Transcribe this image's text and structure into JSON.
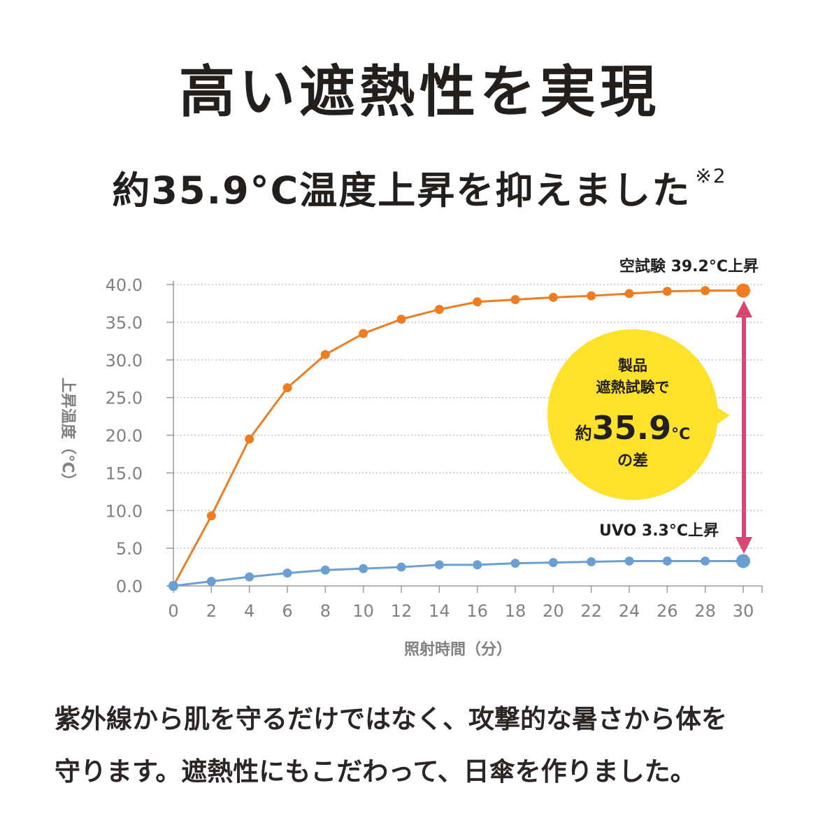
{
  "header": {
    "title": "高い遮熱性を実現",
    "subtitle": "約35.9°C温度上昇を抑えました",
    "subtitle_note": "※2"
  },
  "body": {
    "line1": "紫外線から肌を守るだけではなく、攻撃的な暑さから体を",
    "line2": "守ります。遮熱性にもこだわって、日傘を作りました。"
  },
  "colors": {
    "control": "#ee7d22",
    "product": "#6a9fd4",
    "arrow": "#d94673",
    "bubble": "#fde12b",
    "axis_text": "#808080",
    "grid": "#b9c3c7"
  },
  "chart_data": {
    "type": "line",
    "xlabel": "照射時間（分）",
    "ylabel": "上昇温度（℃）",
    "x": [
      0,
      2,
      4,
      6,
      8,
      10,
      12,
      14,
      16,
      18,
      20,
      22,
      24,
      26,
      28,
      30
    ],
    "xlim": [
      0,
      30
    ],
    "ylim": [
      0,
      40
    ],
    "yticks": [
      0,
      5,
      10,
      15,
      20,
      25,
      30,
      35,
      40
    ],
    "ytick_labels": [
      "0.0",
      "5.0",
      "10.0",
      "15.0",
      "20.0",
      "25.0",
      "30.0",
      "35.0",
      "40.0"
    ],
    "grid": true,
    "series": [
      {
        "key": "control",
        "values": [
          0,
          9.3,
          19.5,
          26.3,
          30.7,
          33.5,
          35.4,
          36.7,
          37.7,
          38.0,
          38.3,
          38.5,
          38.8,
          39.1,
          39.2,
          39.2
        ],
        "end_label": "空試験 39.2°C上昇"
      },
      {
        "key": "product",
        "values": [
          0,
          0.6,
          1.2,
          1.7,
          2.1,
          2.3,
          2.5,
          2.8,
          2.8,
          3.0,
          3.1,
          3.2,
          3.3,
          3.3,
          3.3,
          3.3
        ],
        "end_label": "UVO 3.3°C上昇"
      }
    ],
    "callout": {
      "line1": "製品",
      "line2": "遮熱試験で",
      "prefix": "約",
      "value": "35.9",
      "unit": "°C",
      "line4": "の差"
    }
  }
}
